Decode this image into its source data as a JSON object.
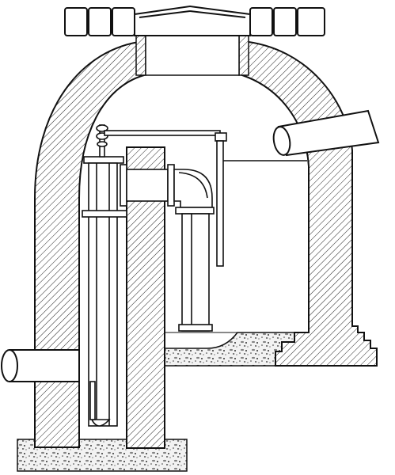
{
  "figure": {
    "subject": "manhole-chamber-cross-section",
    "colors": {
      "ink": "#111111",
      "paper": "#ffffff",
      "masonry_hatch": "#222222",
      "concrete_fill": "#f2f2f2"
    },
    "parts": [
      "capstones",
      "arched-masonry-wall",
      "access-shaft",
      "inlet-pipe-upper-right",
      "outlet-pipe-lower-left",
      "central-pier",
      "siphon-tube",
      "flanged-elbow-pipe",
      "drop-pipe",
      "valve-spindle",
      "concrete-base",
      "stepped-concrete-bench"
    ]
  }
}
